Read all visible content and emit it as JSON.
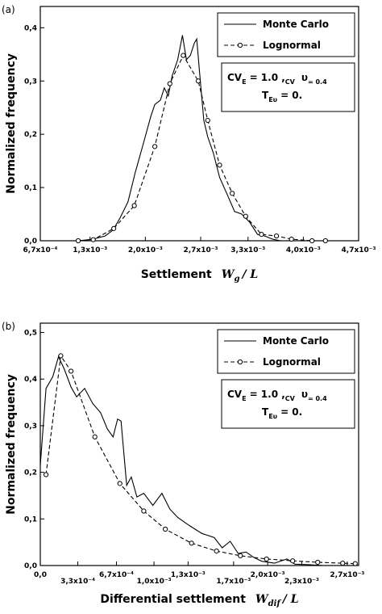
{
  "chart_data": [
    {
      "type": "line",
      "panel_label": "(a)",
      "xlabel": {
        "text": "Settlement",
        "symbol": "W",
        "subscript": "g",
        "suffix": "/ L"
      },
      "ylabel": "Normalized frequency",
      "xlim": [
        0.00067,
        0.0047
      ],
      "xticks": [
        {
          "value": 0.00067,
          "label": "6,7x10⁻⁴"
        },
        {
          "value": 0.0013,
          "label": "1,3x10⁻³"
        },
        {
          "value": 0.002,
          "label": "2,0x10⁻³"
        },
        {
          "value": 0.0027,
          "label": "2,7x10⁻³"
        },
        {
          "value": 0.0033,
          "label": "3,3x10⁻³"
        },
        {
          "value": 0.004,
          "label": "4,0x10⁻³"
        },
        {
          "value": 0.0047,
          "label": "4,7x10⁻³"
        }
      ],
      "ylim": [
        0,
        0.44
      ],
      "yticks": [
        {
          "value": 0,
          "label": "0,0"
        },
        {
          "value": 0.1,
          "label": "0,1"
        },
        {
          "value": 0.2,
          "label": "0,2"
        },
        {
          "value": 0.3,
          "label": "0,3"
        },
        {
          "value": 0.4,
          "label": "0,4"
        }
      ],
      "annotation": [
        [
          "CV",
          "E",
          "= 1.0 ,",
          "CV",
          "υ",
          "= 0.4"
        ],
        [
          "T",
          "Eυ",
          "= 0."
        ]
      ],
      "series": [
        {
          "name": "Monte Carlo",
          "color": "#000000",
          "line_style": "solid",
          "marker": "none",
          "x": [
            0.00115,
            0.00134,
            0.00149,
            0.00159,
            0.00168,
            0.00178,
            0.00187,
            0.00197,
            0.00207,
            0.00212,
            0.00219,
            0.00224,
            0.00229,
            0.00234,
            0.00241,
            0.00247,
            0.00252,
            0.00257,
            0.00262,
            0.00265,
            0.00269,
            0.00274,
            0.00279,
            0.00286,
            0.00294,
            0.00303,
            0.00313,
            0.00322,
            0.00332,
            0.00342,
            0.00351,
            0.00361,
            0.00371,
            0.0038
          ],
          "values": [
            0,
            0.003,
            0.009,
            0.02,
            0.043,
            0.073,
            0.127,
            0.18,
            0.234,
            0.256,
            0.264,
            0.287,
            0.272,
            0.31,
            0.34,
            0.386,
            0.34,
            0.348,
            0.371,
            0.379,
            0.31,
            0.226,
            0.195,
            0.165,
            0.119,
            0.089,
            0.055,
            0.05,
            0.035,
            0.012,
            0.009,
            0.003,
            0,
            0
          ]
        },
        {
          "name": "Lognormal",
          "color": "#000000",
          "line_style": "dashed",
          "marker": "circle",
          "x": [
            0.00115,
            0.00134,
            0.0016,
            0.00186,
            0.00212,
            0.00231,
            0.00248,
            0.00267,
            0.00279,
            0.00294,
            0.0031,
            0.00327,
            0.00347,
            0.00366,
            0.00385,
            0.00411,
            0.00428
          ],
          "values": [
            0,
            0.002,
            0.023,
            0.066,
            0.177,
            0.295,
            0.348,
            0.3,
            0.226,
            0.142,
            0.089,
            0.046,
            0.012,
            0.009,
            0.003,
            0,
            0
          ]
        }
      ]
    },
    {
      "type": "line",
      "panel_label": "(b)",
      "xlabel": {
        "text": "Differential settlement",
        "symbol": "W",
        "subscript": "dif",
        "suffix": "/ L"
      },
      "ylabel": "Normalized frequency",
      "xlim": [
        0,
        0.0028
      ],
      "xticks": [
        {
          "value": 0,
          "label": "0,0"
        },
        {
          "value": 0.00033,
          "label": "3,3x10⁻⁴"
        },
        {
          "value": 0.00067,
          "label": "6,7x10⁻⁴"
        },
        {
          "value": 0.001,
          "label": "1,0x10⁻³"
        },
        {
          "value": 0.0013,
          "label": "1,3x10⁻³"
        },
        {
          "value": 0.0017,
          "label": "1,7x10⁻³"
        },
        {
          "value": 0.002,
          "label": "2,0x10⁻³"
        },
        {
          "value": 0.0023,
          "label": "2,3x10⁻³"
        },
        {
          "value": 0.0027,
          "label": "2,7x10⁻³"
        }
      ],
      "ylim": [
        0,
        0.52
      ],
      "yticks": [
        {
          "value": 0,
          "label": "0,0"
        },
        {
          "value": 0.1,
          "label": "0,1"
        },
        {
          "value": 0.2,
          "label": "0,2"
        },
        {
          "value": 0.3,
          "label": "0,3"
        },
        {
          "value": 0.4,
          "label": "0,4"
        },
        {
          "value": 0.5,
          "label": "0,5"
        }
      ],
      "annotation": [
        [
          "CV",
          "E",
          "= 1.0 ,",
          "CV",
          "υ",
          "= 0.4"
        ],
        [
          "T",
          "Eυ",
          "= 0."
        ]
      ],
      "series": [
        {
          "name": "Monte Carlo",
          "color": "#000000",
          "line_style": "solid",
          "marker": "none",
          "x": [
            0,
            5e-05,
            0.00011,
            0.00016,
            0.00021,
            0.00027,
            0.00032,
            0.00039,
            0.00046,
            0.00053,
            0.00059,
            0.00064,
            0.00068,
            0.00071,
            0.00076,
            0.0008,
            0.00085,
            0.00091,
            0.00099,
            0.00107,
            0.00114,
            0.00121,
            0.00131,
            0.00142,
            0.00153,
            0.0016,
            0.00167,
            0.00174,
            0.00181,
            0.00188,
            0.00195,
            0.00206,
            0.00217,
            0.00224,
            0.00234,
            0.00249
          ],
          "values": [
            0.215,
            0.38,
            0.405,
            0.448,
            0.422,
            0.383,
            0.362,
            0.38,
            0.348,
            0.328,
            0.293,
            0.276,
            0.314,
            0.31,
            0.172,
            0.19,
            0.147,
            0.155,
            0.129,
            0.155,
            0.121,
            0.103,
            0.086,
            0.069,
            0.06,
            0.038,
            0.052,
            0.026,
            0.029,
            0.017,
            0.009,
            0.005,
            0.014,
            0.003,
            0.002,
            0
          ]
        },
        {
          "name": "Lognormal",
          "color": "#000000",
          "line_style": "dashed",
          "marker": "circle",
          "x": [
            5e-05,
            0.00018,
            0.00027,
            0.00048,
            0.0007,
            0.00091,
            0.0011,
            0.00133,
            0.00155,
            0.00176,
            0.00199,
            0.00222,
            0.00244,
            0.00266,
            0.00277
          ],
          "values": [
            0.195,
            0.45,
            0.417,
            0.276,
            0.176,
            0.117,
            0.078,
            0.048,
            0.031,
            0.021,
            0.014,
            0.01,
            0.007,
            0.005,
            0.004
          ]
        }
      ]
    }
  ]
}
